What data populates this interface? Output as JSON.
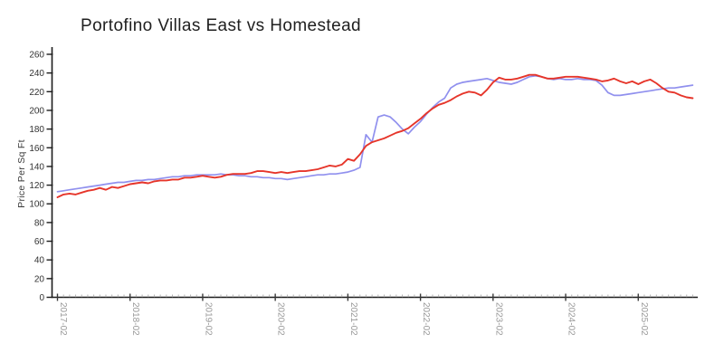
{
  "chart_data": {
    "type": "line",
    "title": "Portofino Villas East vs Homestead",
    "ylabel": "Price Per Sq Ft",
    "xlabel": "",
    "ylim": [
      0,
      260
    ],
    "y_ticks": [
      0,
      20,
      40,
      60,
      80,
      100,
      120,
      140,
      160,
      180,
      200,
      220,
      240,
      260
    ],
    "x_major_tick_labels": [
      "2017-02",
      "2018-02",
      "2019-02",
      "2020-02",
      "2021-02",
      "2022-02",
      "2023-02",
      "2024-02",
      "2025-02"
    ],
    "grid": false,
    "legend": "none",
    "axis_color": "#1c1c1c",
    "x_tick_label_color": "#999999",
    "y_tick_label_color": "#333333",
    "minor_tick_color": "#b3b3b3",
    "x": [
      "2017-02",
      "2017-03",
      "2017-04",
      "2017-05",
      "2017-06",
      "2017-07",
      "2017-08",
      "2017-09",
      "2017-10",
      "2017-11",
      "2017-12",
      "2018-01",
      "2018-02",
      "2018-03",
      "2018-04",
      "2018-05",
      "2018-06",
      "2018-07",
      "2018-08",
      "2018-09",
      "2018-10",
      "2018-11",
      "2018-12",
      "2019-01",
      "2019-02",
      "2019-03",
      "2019-04",
      "2019-05",
      "2019-06",
      "2019-07",
      "2019-08",
      "2019-09",
      "2019-10",
      "2019-11",
      "2019-12",
      "2020-01",
      "2020-02",
      "2020-03",
      "2020-04",
      "2020-05",
      "2020-06",
      "2020-07",
      "2020-08",
      "2020-09",
      "2020-10",
      "2020-11",
      "2020-12",
      "2021-01",
      "2021-02",
      "2021-03",
      "2021-04",
      "2021-05",
      "2021-06",
      "2021-07",
      "2021-08",
      "2021-09",
      "2021-10",
      "2021-11",
      "2021-12",
      "2022-01",
      "2022-02",
      "2022-03",
      "2022-04",
      "2022-05",
      "2022-06",
      "2022-07",
      "2022-08",
      "2022-09",
      "2022-10",
      "2022-11",
      "2022-12",
      "2023-01",
      "2023-02",
      "2023-03",
      "2023-04",
      "2023-05",
      "2023-06",
      "2023-07",
      "2023-08",
      "2023-09",
      "2023-10",
      "2023-11",
      "2023-12",
      "2024-01",
      "2024-02",
      "2024-03",
      "2024-04",
      "2024-05",
      "2024-06",
      "2024-07",
      "2024-08",
      "2024-09",
      "2024-10",
      "2024-11",
      "2024-12",
      "2025-01",
      "2025-02",
      "2025-03",
      "2025-04",
      "2025-05",
      "2025-06",
      "2025-07",
      "2025-08",
      "2025-09",
      "2025-10",
      "2025-11"
    ],
    "series": [
      {
        "name": "Portofino Villas East",
        "key": "portofino-villas-east",
        "color": "#9090ee",
        "line_width": 1.7,
        "values": [
          113,
          114,
          115,
          116,
          117,
          118,
          119,
          120,
          121,
          122,
          123,
          123,
          124,
          125,
          125,
          126,
          126,
          127,
          128,
          129,
          129,
          130,
          130,
          131,
          131,
          131,
          131,
          132,
          131,
          131,
          130,
          130,
          129,
          129,
          128,
          128,
          127,
          127,
          126,
          127,
          128,
          129,
          130,
          131,
          131,
          132,
          132,
          133,
          134,
          136,
          139,
          174,
          166,
          193,
          195,
          193,
          187,
          180,
          175,
          182,
          188,
          196,
          203,
          209,
          213,
          224,
          228,
          230,
          231,
          232,
          233,
          234,
          232,
          230,
          229,
          228,
          230,
          233,
          236,
          237,
          236,
          234,
          233,
          234,
          233,
          233,
          234,
          233,
          233,
          232,
          227,
          219,
          216,
          216,
          217,
          218,
          219,
          220,
          221,
          222,
          223,
          224,
          224,
          225,
          226,
          227
        ]
      },
      {
        "name": "Homestead",
        "key": "homestead",
        "color": "#e6352a",
        "line_width": 1.9,
        "values": [
          107,
          110,
          111,
          110,
          112,
          114,
          115,
          117,
          115,
          118,
          117,
          119,
          121,
          122,
          123,
          122,
          124,
          125,
          125,
          126,
          126,
          128,
          128,
          129,
          130,
          129,
          128,
          129,
          131,
          132,
          132,
          132,
          133,
          135,
          135,
          134,
          133,
          134,
          133,
          134,
          135,
          135,
          136,
          137,
          139,
          141,
          140,
          142,
          148,
          146,
          153,
          162,
          166,
          168,
          170,
          173,
          176,
          178,
          181,
          186,
          191,
          197,
          202,
          206,
          208,
          211,
          215,
          218,
          220,
          219,
          216,
          222,
          230,
          235,
          233,
          233,
          234,
          236,
          238,
          238,
          236,
          234,
          234,
          235,
          236,
          236,
          236,
          235,
          234,
          233,
          231,
          232,
          234,
          231,
          229,
          231,
          228,
          231,
          233,
          229,
          224,
          220,
          219,
          216,
          214,
          213
        ]
      }
    ]
  }
}
